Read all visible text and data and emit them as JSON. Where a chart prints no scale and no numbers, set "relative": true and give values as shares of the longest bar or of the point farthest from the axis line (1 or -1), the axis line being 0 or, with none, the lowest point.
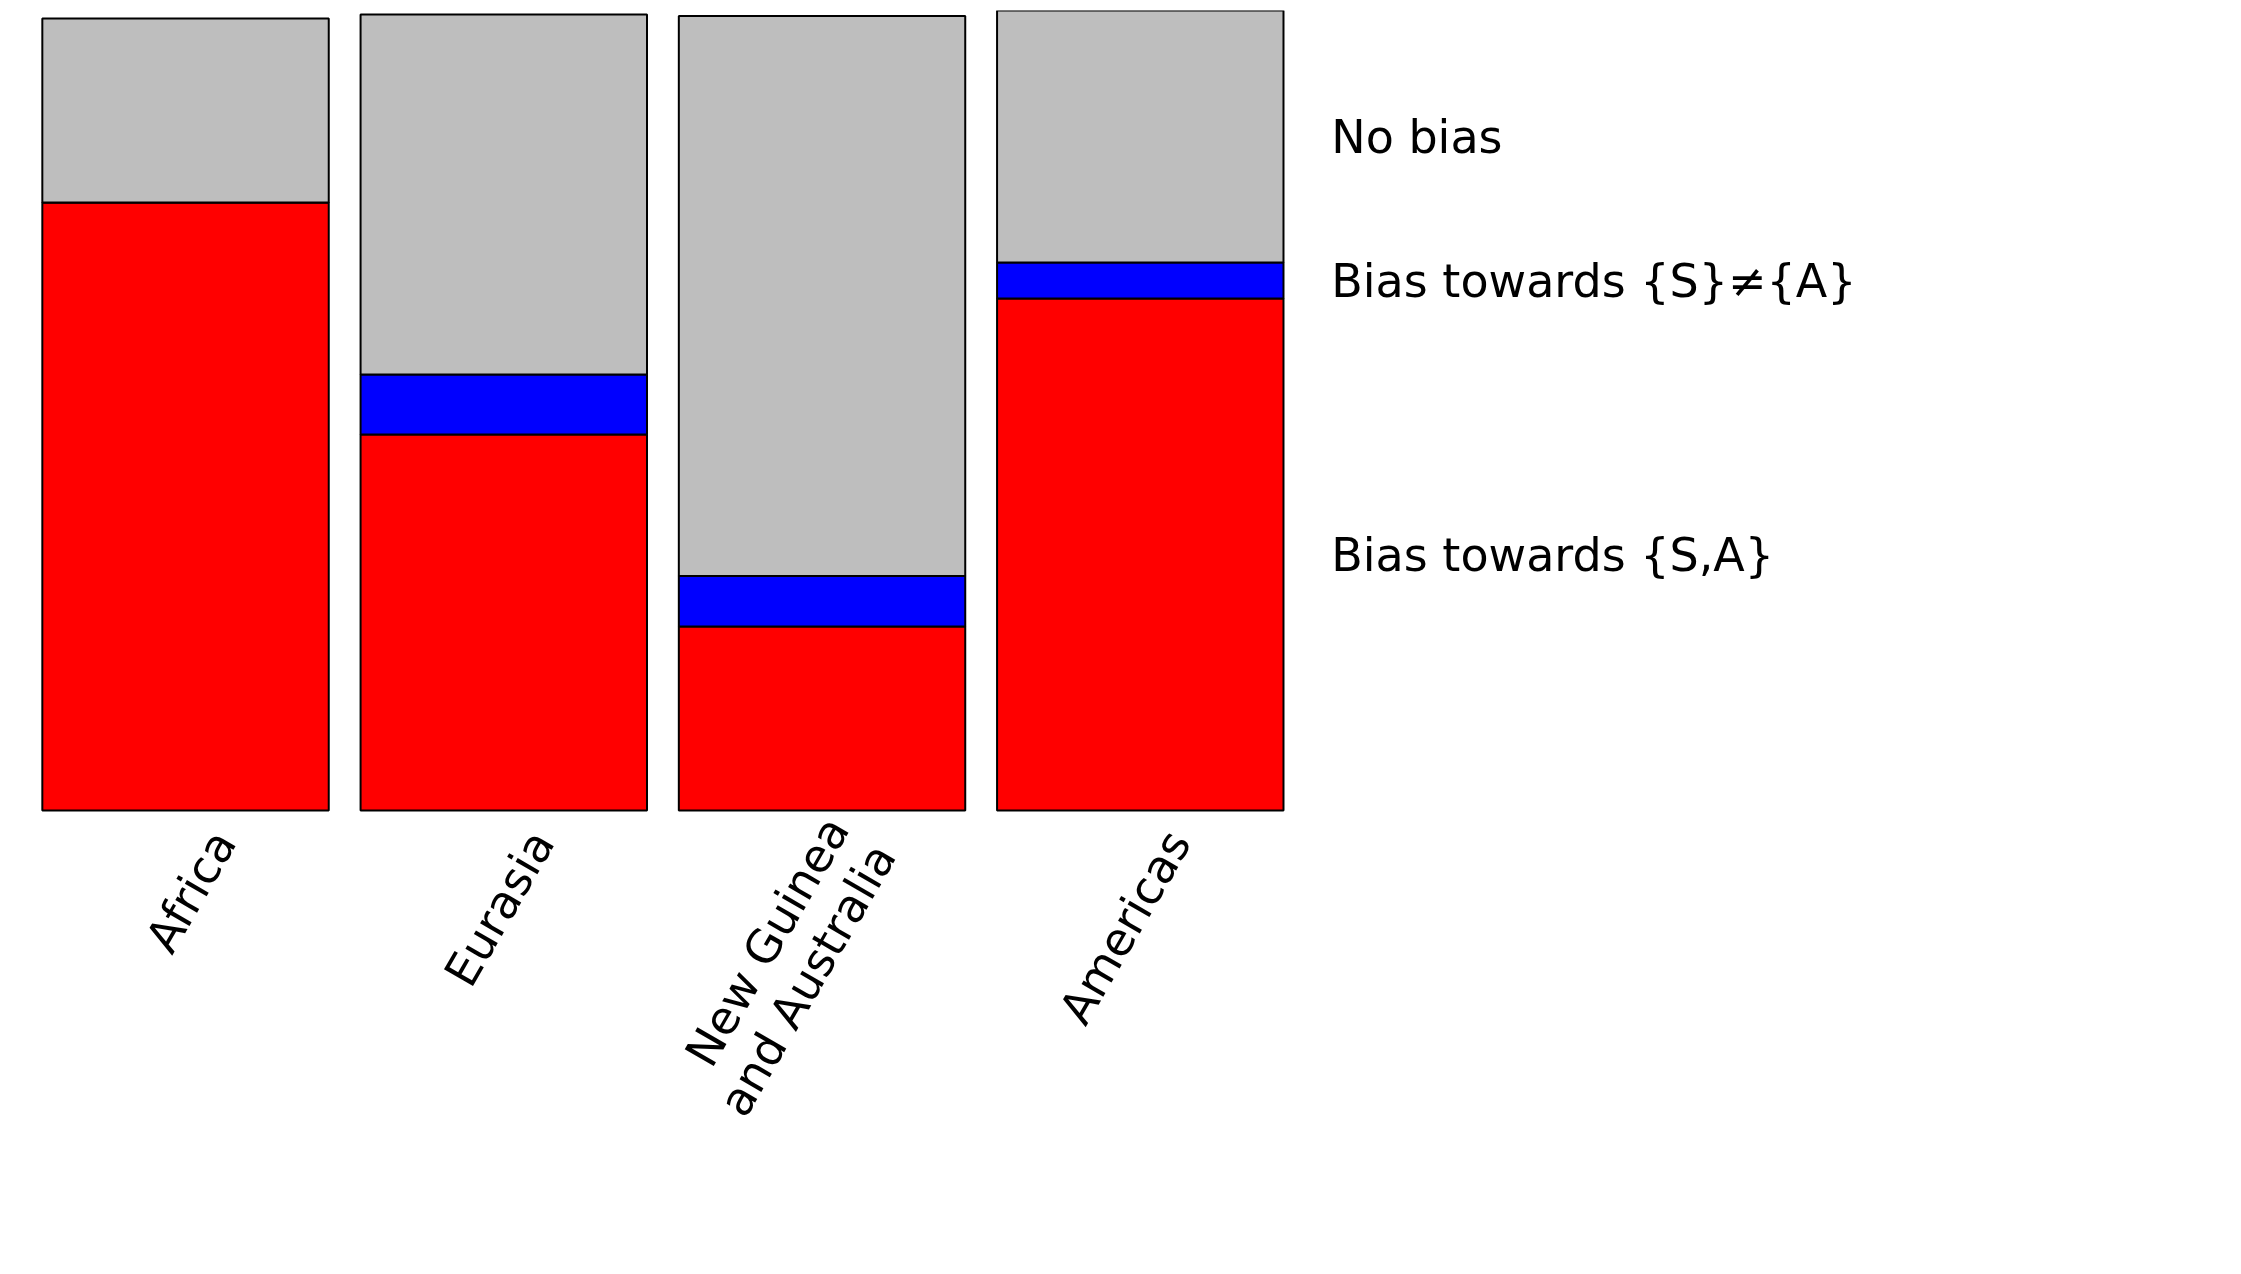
{
  "chart_data": {
    "type": "bar",
    "stacked": true,
    "relative": true,
    "grid": false,
    "categories": [
      "Africa",
      "Eurasia",
      "New Guinea\nand Australia",
      "Americas"
    ],
    "series": [
      {
        "name": "Bias towards {S,A}",
        "color": "#ff0000",
        "values": [
          0.76,
          0.47,
          0.23,
          0.64
        ]
      },
      {
        "name": "Bias towards {S}≠{A}",
        "color": "#0000ff",
        "values": [
          0,
          0.075,
          0.063,
          0.045
        ]
      },
      {
        "name": "No bias",
        "color": "#bebebe",
        "values": [
          0.23,
          0.45,
          0.7,
          0.315
        ]
      }
    ]
  }
}
